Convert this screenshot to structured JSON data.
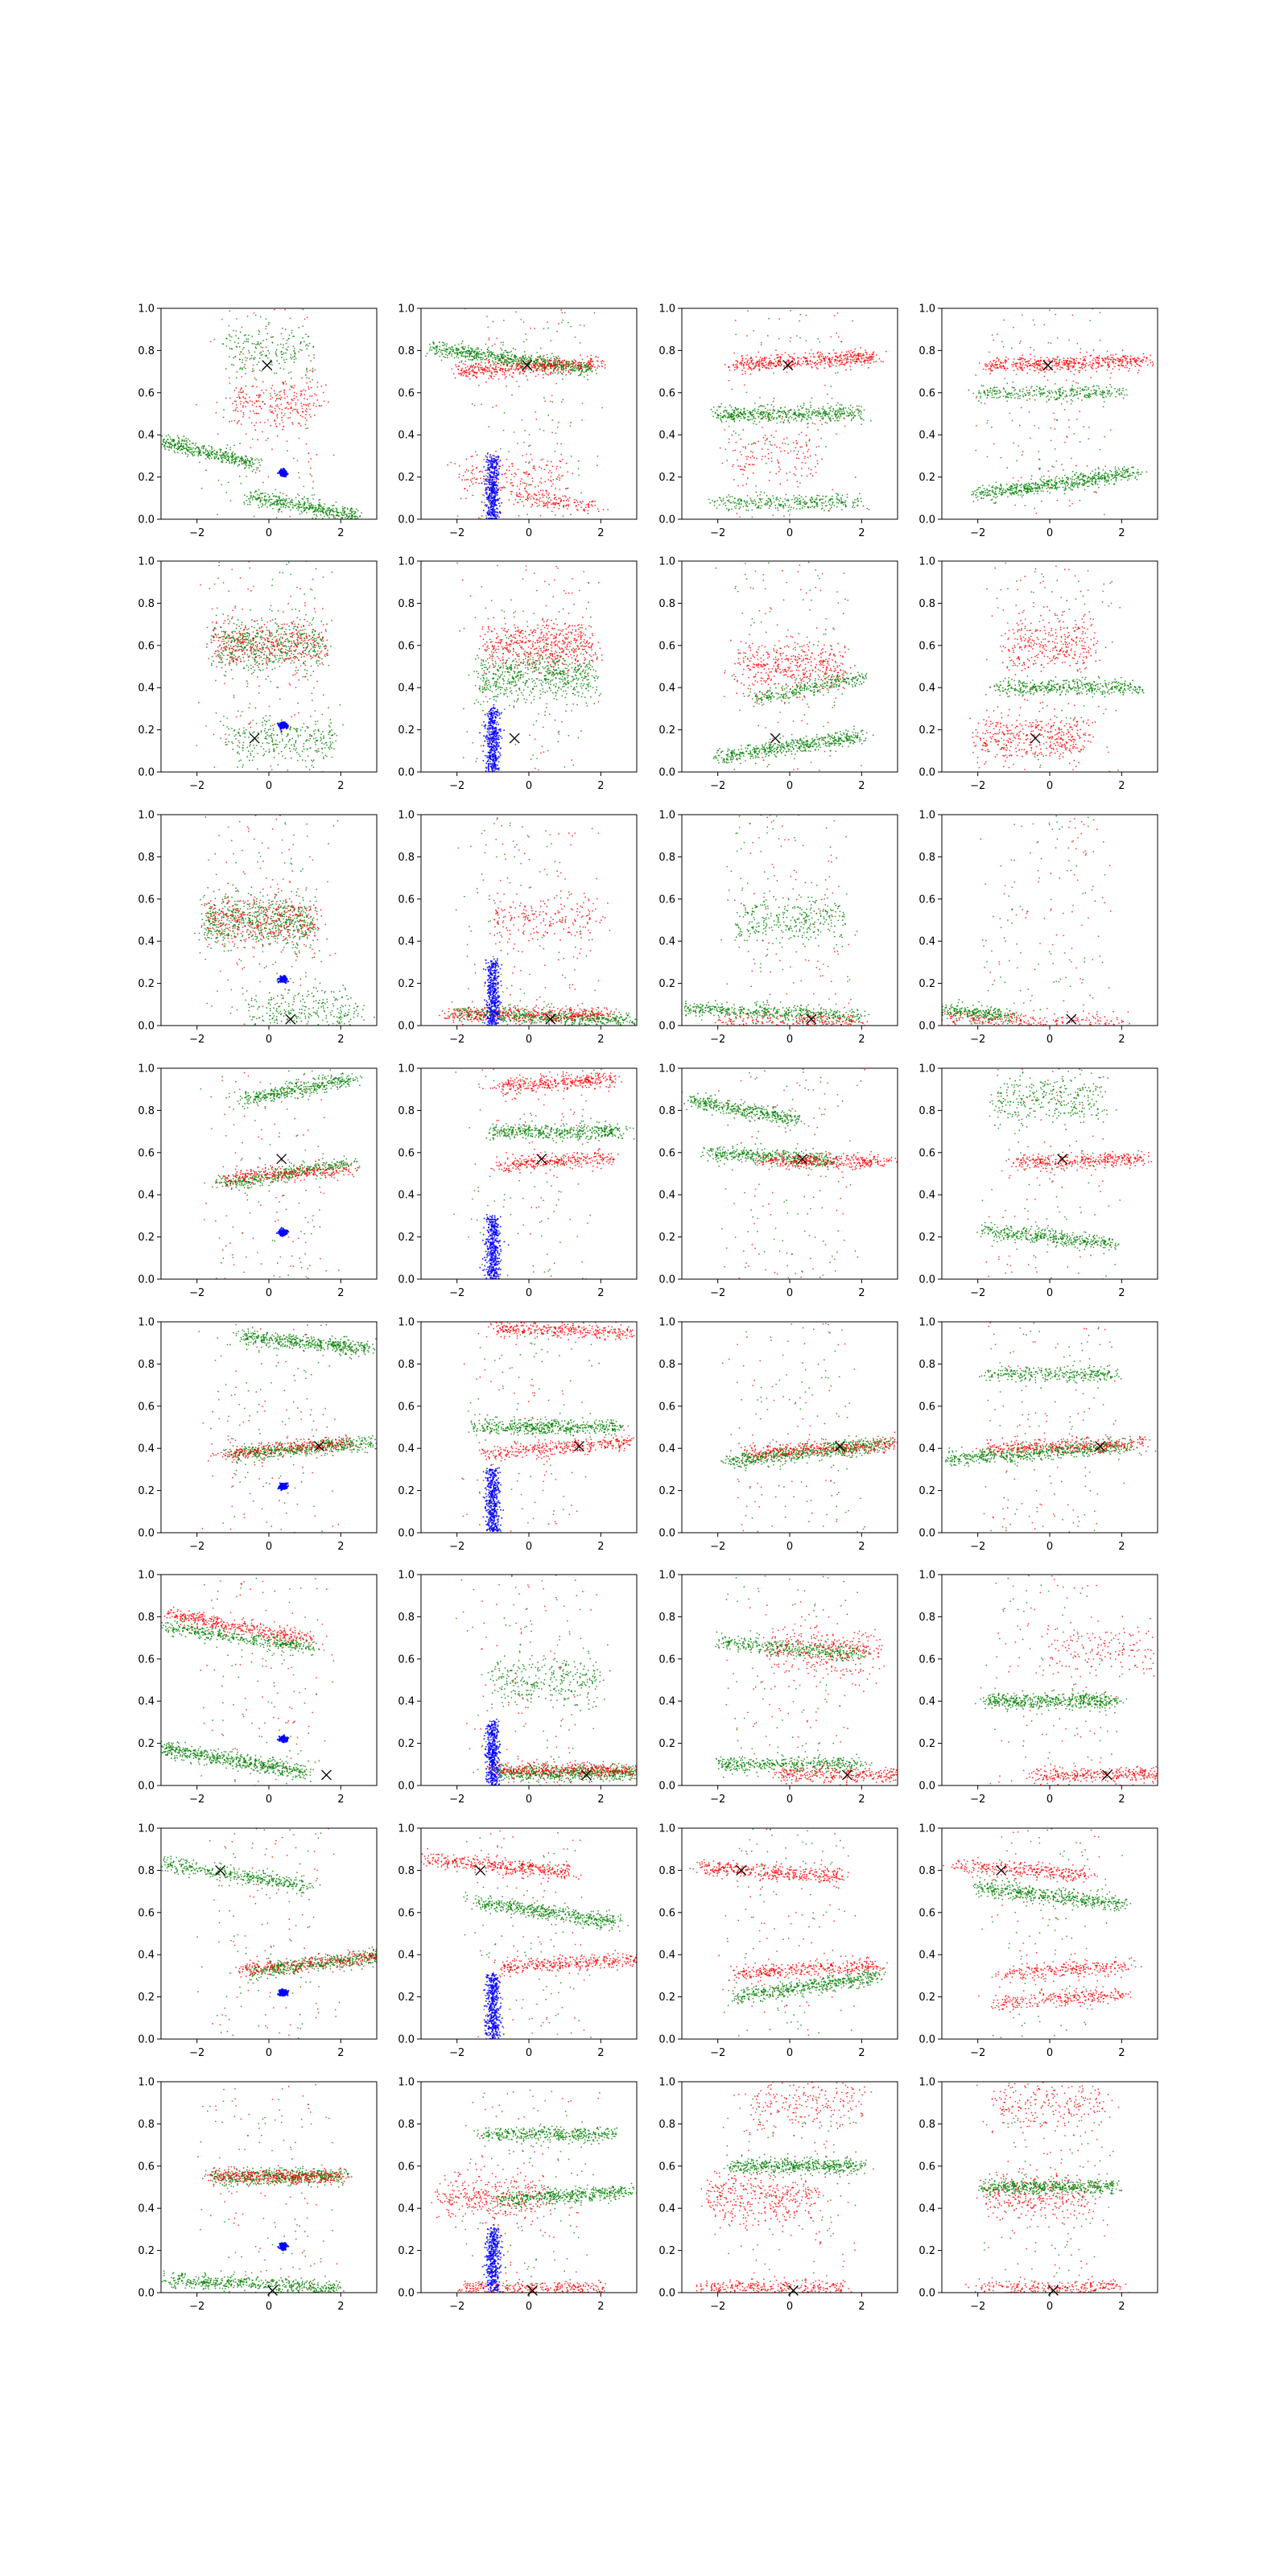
{
  "figure": {
    "rows": 8,
    "cols": 4
  },
  "colors": {
    "red": "#ff0000",
    "green": "#008000",
    "blue": "#0000ff",
    "marker": "#000000",
    "axes": "#000000",
    "background": "#ffffff"
  },
  "chart_data": {
    "type": "scatter",
    "layout": "8 rows x 4 columns grid of scatter subplots",
    "xlim": [
      -3,
      3
    ],
    "ylim": [
      0,
      1
    ],
    "x_ticks": [
      -2,
      0,
      2
    ],
    "x_tick_labels": [
      "−2",
      "0",
      "2"
    ],
    "y_ticks": [
      0.0,
      0.2,
      0.4,
      0.6,
      0.8,
      1.0
    ],
    "y_tick_labels": [
      "0.0",
      "0.2",
      "0.4",
      "0.6",
      "0.8",
      "1.0"
    ],
    "grid": false,
    "legend": "none",
    "series": [
      {
        "color": "red",
        "marker": "dot"
      },
      {
        "color": "green",
        "marker": "dot"
      },
      {
        "color": "blue",
        "marker": "dot"
      },
      {
        "color": "black",
        "marker": "x"
      }
    ],
    "blue_clusters": {
      "col1": {
        "x": 0.4,
        "y": 0.22
      },
      "col2": {
        "x": -1.0,
        "y": [
          0.0,
          0.3
        ]
      }
    },
    "x_markers": [
      {
        "row": 1,
        "x": -0.05,
        "y": 0.73
      },
      {
        "row": 2,
        "x": -0.4,
        "y": 0.16
      },
      {
        "row": 3,
        "x": 0.6,
        "y": 0.03
      },
      {
        "row": 4,
        "x": 0.35,
        "y": 0.57
      },
      {
        "row": 5,
        "x": 1.4,
        "y": 0.41
      },
      {
        "row": 6,
        "x": 1.6,
        "y": 0.05
      },
      {
        "row": 7,
        "x": -1.35,
        "y": 0.8
      },
      {
        "row": 8,
        "x": 0.1,
        "y": 0.01
      }
    ],
    "bands": [
      [
        [
          {
            "c": "green",
            "x": -1.8,
            "y": 0.32,
            "w": 1.4,
            "s": -0.06,
            "n": 420
          },
          {
            "c": "green",
            "x": 1.0,
            "y": 0.06,
            "w": 1.5,
            "s": -0.05,
            "n": 420
          },
          {
            "c": "red",
            "x": 0.2,
            "y": 0.55,
            "w": 1.2,
            "s": 0,
            "n": 240
          },
          {
            "c": "green",
            "x": 0.0,
            "y": 0.8,
            "w": 1.2,
            "s": 0,
            "n": 180
          }
        ],
        [
          {
            "c": "green",
            "x": -0.5,
            "y": 0.76,
            "w": 2.2,
            "s": -0.05,
            "n": 700
          },
          {
            "c": "red",
            "x": 0.0,
            "y": 0.72,
            "w": 2.0,
            "s": 0.02,
            "n": 450
          },
          {
            "c": "red",
            "x": -0.5,
            "y": 0.2,
            "w": 1.5,
            "s": 0,
            "n": 200
          },
          {
            "c": "red",
            "x": 0.8,
            "y": 0.08,
            "w": 1.2,
            "s": -0.03,
            "n": 150
          }
        ],
        [
          {
            "c": "red",
            "x": 0.4,
            "y": 0.75,
            "w": 2.0,
            "s": 0.02,
            "n": 500
          },
          {
            "c": "green",
            "x": 0.0,
            "y": 0.5,
            "w": 2.0,
            "s": 0,
            "n": 500
          },
          {
            "c": "green",
            "x": 0.0,
            "y": 0.08,
            "w": 2.0,
            "s": 0,
            "n": 300
          },
          {
            "c": "red",
            "x": -0.5,
            "y": 0.3,
            "w": 1.2,
            "s": 0,
            "n": 120
          }
        ],
        [
          {
            "c": "red",
            "x": 0.5,
            "y": 0.74,
            "w": 2.2,
            "s": 0.01,
            "n": 500
          },
          {
            "c": "green",
            "x": 0.2,
            "y": 0.17,
            "w": 2.2,
            "s": 0.05,
            "n": 600
          },
          {
            "c": "green",
            "x": 0.0,
            "y": 0.6,
            "w": 2.0,
            "s": 0,
            "n": 300
          }
        ]
      ],
      [
        [
          {
            "c": "green",
            "x": 0.0,
            "y": 0.6,
            "w": 1.5,
            "s": 0,
            "n": 500
          },
          {
            "c": "red",
            "x": 0.0,
            "y": 0.6,
            "w": 1.5,
            "s": 0,
            "n": 400
          },
          {
            "c": "green",
            "x": 0.3,
            "y": 0.15,
            "w": 1.5,
            "s": 0,
            "n": 300
          }
        ],
        [
          {
            "c": "green",
            "x": 0.2,
            "y": 0.45,
            "w": 1.6,
            "s": 0,
            "n": 600
          },
          {
            "c": "red",
            "x": 0.3,
            "y": 0.6,
            "w": 1.5,
            "s": 0,
            "n": 500
          }
        ],
        [
          {
            "c": "green",
            "x": 0.0,
            "y": 0.12,
            "w": 2.0,
            "s": 0.05,
            "n": 500
          },
          {
            "c": "red",
            "x": 0.0,
            "y": 0.5,
            "w": 1.5,
            "s": 0,
            "n": 400
          },
          {
            "c": "green",
            "x": 0.5,
            "y": 0.4,
            "w": 1.5,
            "s": 0.05,
            "n": 300
          }
        ],
        [
          {
            "c": "red",
            "x": -0.5,
            "y": 0.16,
            "w": 1.5,
            "s": 0,
            "n": 400
          },
          {
            "c": "green",
            "x": 0.5,
            "y": 0.4,
            "w": 2.0,
            "s": 0,
            "n": 400
          },
          {
            "c": "red",
            "x": 0.0,
            "y": 0.6,
            "w": 1.2,
            "s": 0,
            "n": 300
          }
        ]
      ],
      [
        [
          {
            "c": "green",
            "x": -0.3,
            "y": 0.5,
            "w": 1.5,
            "s": 0,
            "n": 600
          },
          {
            "c": "red",
            "x": -0.2,
            "y": 0.5,
            "w": 1.5,
            "s": 0,
            "n": 400
          },
          {
            "c": "green",
            "x": 1.0,
            "y": 0.05,
            "w": 1.5,
            "s": 0,
            "n": 300
          }
        ],
        [
          {
            "c": "green",
            "x": 0.5,
            "y": 0.04,
            "w": 2.5,
            "s": -0.02,
            "n": 600
          },
          {
            "c": "red",
            "x": 0.0,
            "y": 0.05,
            "w": 2.2,
            "s": 0,
            "n": 400
          },
          {
            "c": "red",
            "x": 0.5,
            "y": 0.5,
            "w": 1.5,
            "s": 0,
            "n": 200
          }
        ],
        [
          {
            "c": "green",
            "x": -0.5,
            "y": 0.06,
            "w": 2.5,
            "s": -0.02,
            "n": 500
          },
          {
            "c": "green",
            "x": 0.0,
            "y": 0.5,
            "w": 1.5,
            "s": 0,
            "n": 300
          },
          {
            "c": "red",
            "x": 0.0,
            "y": 0.02,
            "w": 2.0,
            "s": 0,
            "n": 200
          }
        ],
        [
          {
            "c": "green",
            "x": -2.2,
            "y": 0.06,
            "w": 1.2,
            "s": -0.02,
            "n": 300
          },
          {
            "c": "red",
            "x": -0.3,
            "y": 0.02,
            "w": 2.5,
            "s": -0.01,
            "n": 250
          }
        ]
      ],
      [
        [
          {
            "c": "green",
            "x": 0.8,
            "y": 0.9,
            "w": 1.5,
            "s": 0.05,
            "n": 400
          },
          {
            "c": "green",
            "x": 0.5,
            "y": 0.5,
            "w": 1.8,
            "s": 0.05,
            "n": 400
          },
          {
            "c": "red",
            "x": 0.5,
            "y": 0.5,
            "w": 1.8,
            "s": 0.02,
            "n": 300
          }
        ],
        [
          {
            "c": "red",
            "x": 0.8,
            "y": 0.93,
            "w": 1.6,
            "s": 0.02,
            "n": 350
          },
          {
            "c": "red",
            "x": 0.8,
            "y": 0.56,
            "w": 1.6,
            "s": 0.02,
            "n": 300
          },
          {
            "c": "green",
            "x": 0.8,
            "y": 0.7,
            "w": 1.8,
            "s": 0,
            "n": 450
          }
        ],
        [
          {
            "c": "green",
            "x": -1.2,
            "y": 0.8,
            "w": 1.5,
            "s": -0.05,
            "n": 400
          },
          {
            "c": "green",
            "x": -0.5,
            "y": 0.58,
            "w": 1.8,
            "s": -0.02,
            "n": 400
          },
          {
            "c": "red",
            "x": 1.0,
            "y": 0.56,
            "w": 1.8,
            "s": 0,
            "n": 350
          }
        ],
        [
          {
            "c": "red",
            "x": 0.8,
            "y": 0.56,
            "w": 1.8,
            "s": 0.01,
            "n": 350
          },
          {
            "c": "green",
            "x": 0.0,
            "y": 0.2,
            "w": 1.8,
            "s": -0.03,
            "n": 400
          },
          {
            "c": "green",
            "x": 0.0,
            "y": 0.85,
            "w": 1.5,
            "s": 0,
            "n": 300
          }
        ]
      ],
      [
        [
          {
            "c": "green",
            "x": 1.0,
            "y": 0.9,
            "w": 1.8,
            "s": -0.03,
            "n": 500
          },
          {
            "c": "green",
            "x": 1.0,
            "y": 0.4,
            "w": 2.0,
            "s": 0.03,
            "n": 500
          },
          {
            "c": "red",
            "x": 0.5,
            "y": 0.4,
            "w": 1.8,
            "s": 0.03,
            "n": 300
          }
        ],
        [
          {
            "c": "red",
            "x": 1.0,
            "y": 0.96,
            "w": 2.0,
            "s": -0.01,
            "n": 350
          },
          {
            "c": "red",
            "x": 0.8,
            "y": 0.4,
            "w": 2.0,
            "s": 0.03,
            "n": 350
          },
          {
            "c": "green",
            "x": 0.5,
            "y": 0.5,
            "w": 2.0,
            "s": 0,
            "n": 500
          }
        ],
        [
          {
            "c": "green",
            "x": 0.5,
            "y": 0.38,
            "w": 2.2,
            "s": 0.04,
            "n": 600
          },
          {
            "c": "red",
            "x": 0.8,
            "y": 0.4,
            "w": 2.0,
            "s": 0.02,
            "n": 350
          }
        ],
        [
          {
            "c": "green",
            "x": -0.3,
            "y": 0.38,
            "w": 2.5,
            "s": 0.03,
            "n": 600
          },
          {
            "c": "red",
            "x": 0.5,
            "y": 0.41,
            "w": 2.2,
            "s": 0.01,
            "n": 350
          },
          {
            "c": "green",
            "x": 0.0,
            "y": 0.75,
            "w": 1.8,
            "s": 0,
            "n": 300
          }
        ]
      ],
      [
        [
          {
            "c": "green",
            "x": -1.0,
            "y": 0.12,
            "w": 2.0,
            "s": -0.06,
            "n": 600
          },
          {
            "c": "red",
            "x": -0.8,
            "y": 0.75,
            "w": 2.0,
            "s": -0.06,
            "n": 400
          },
          {
            "c": "green",
            "x": -0.8,
            "y": 0.7,
            "w": 2.0,
            "s": -0.05,
            "n": 400
          }
        ],
        [
          {
            "c": "green",
            "x": 1.2,
            "y": 0.06,
            "w": 2.0,
            "s": 0,
            "n": 600
          },
          {
            "c": "red",
            "x": 1.0,
            "y": 0.07,
            "w": 2.0,
            "s": 0,
            "n": 400
          },
          {
            "c": "green",
            "x": 0.5,
            "y": 0.5,
            "w": 1.5,
            "s": 0,
            "n": 300
          }
        ],
        [
          {
            "c": "green",
            "x": 0.0,
            "y": 0.65,
            "w": 2.0,
            "s": -0.03,
            "n": 400
          },
          {
            "c": "red",
            "x": 1.0,
            "y": 0.64,
            "w": 1.5,
            "s": 0,
            "n": 300
          },
          {
            "c": "green",
            "x": 0.0,
            "y": 0.1,
            "w": 2.0,
            "s": 0,
            "n": 400
          },
          {
            "c": "red",
            "x": 1.5,
            "y": 0.05,
            "w": 1.8,
            "s": 0,
            "n": 300
          }
        ],
        [
          {
            "c": "red",
            "x": 1.5,
            "y": 0.05,
            "w": 2.0,
            "s": 0,
            "n": 350
          },
          {
            "c": "green",
            "x": 0.0,
            "y": 0.4,
            "w": 1.8,
            "s": 0,
            "n": 500
          },
          {
            "c": "red",
            "x": 1.5,
            "y": 0.64,
            "w": 1.5,
            "s": 0,
            "n": 150
          }
        ]
      ],
      [
        [
          {
            "c": "green",
            "x": -1.0,
            "y": 0.78,
            "w": 2.0,
            "s": -0.05,
            "n": 400
          },
          {
            "c": "green",
            "x": 1.5,
            "y": 0.36,
            "w": 2.0,
            "s": 0.04,
            "n": 500
          },
          {
            "c": "red",
            "x": 1.2,
            "y": 0.36,
            "w": 2.0,
            "s": 0.04,
            "n": 300
          }
        ],
        [
          {
            "c": "red",
            "x": -0.8,
            "y": 0.82,
            "w": 2.0,
            "s": -0.03,
            "n": 400
          },
          {
            "c": "red",
            "x": 1.2,
            "y": 0.36,
            "w": 2.0,
            "s": 0.02,
            "n": 350
          },
          {
            "c": "green",
            "x": 0.5,
            "y": 0.6,
            "w": 2.0,
            "s": -0.05,
            "n": 500
          }
        ],
        [
          {
            "c": "red",
            "x": -0.5,
            "y": 0.79,
            "w": 2.0,
            "s": -0.02,
            "n": 400
          },
          {
            "c": "red",
            "x": 0.5,
            "y": 0.33,
            "w": 2.0,
            "s": 0.02,
            "n": 350
          },
          {
            "c": "green",
            "x": 0.5,
            "y": 0.25,
            "w": 2.0,
            "s": 0.05,
            "n": 500
          }
        ],
        [
          {
            "c": "red",
            "x": -0.8,
            "y": 0.8,
            "w": 1.8,
            "s": -0.02,
            "n": 300
          },
          {
            "c": "green",
            "x": 0.0,
            "y": 0.68,
            "w": 2.0,
            "s": -0.04,
            "n": 500
          },
          {
            "c": "red",
            "x": 0.5,
            "y": 0.33,
            "w": 1.8,
            "s": 0.02,
            "n": 250
          },
          {
            "c": "red",
            "x": 0.3,
            "y": 0.19,
            "w": 1.8,
            "s": 0.02,
            "n": 250
          }
        ]
      ],
      [
        [
          {
            "c": "green",
            "x": -0.5,
            "y": 0.04,
            "w": 2.5,
            "s": -0.02,
            "n": 500
          },
          {
            "c": "green",
            "x": 0.3,
            "y": 0.55,
            "w": 1.8,
            "s": 0,
            "n": 500
          },
          {
            "c": "red",
            "x": 0.2,
            "y": 0.55,
            "w": 1.8,
            "s": 0,
            "n": 400
          }
        ],
        [
          {
            "c": "red",
            "x": -1.0,
            "y": 0.45,
            "w": 1.5,
            "s": 0,
            "n": 350
          },
          {
            "c": "green",
            "x": 1.0,
            "y": 0.46,
            "w": 1.8,
            "s": 0.02,
            "n": 450
          },
          {
            "c": "red",
            "x": 0.0,
            "y": 0.02,
            "w": 2.0,
            "s": 0,
            "n": 300
          },
          {
            "c": "green",
            "x": 0.5,
            "y": 0.75,
            "w": 1.8,
            "s": 0,
            "n": 400
          }
        ],
        [
          {
            "c": "red",
            "x": -0.8,
            "y": 0.45,
            "w": 1.5,
            "s": 0,
            "n": 350
          },
          {
            "c": "red",
            "x": -0.5,
            "y": 0.02,
            "w": 2.0,
            "s": 0,
            "n": 300
          },
          {
            "c": "green",
            "x": 0.2,
            "y": 0.6,
            "w": 1.8,
            "s": 0,
            "n": 500
          },
          {
            "c": "red",
            "x": 0.5,
            "y": 0.9,
            "w": 1.5,
            "s": 0,
            "n": 200
          }
        ],
        [
          {
            "c": "red",
            "x": -0.3,
            "y": 0.46,
            "w": 1.5,
            "s": 0,
            "n": 300
          },
          {
            "c": "red",
            "x": 0.0,
            "y": 0.9,
            "w": 1.5,
            "s": 0,
            "n": 200
          },
          {
            "c": "red",
            "x": 0.0,
            "y": 0.02,
            "w": 2.0,
            "s": 0,
            "n": 250
          },
          {
            "c": "green",
            "x": 0.0,
            "y": 0.5,
            "w": 1.8,
            "s": 0,
            "n": 500
          }
        ]
      ]
    ]
  }
}
